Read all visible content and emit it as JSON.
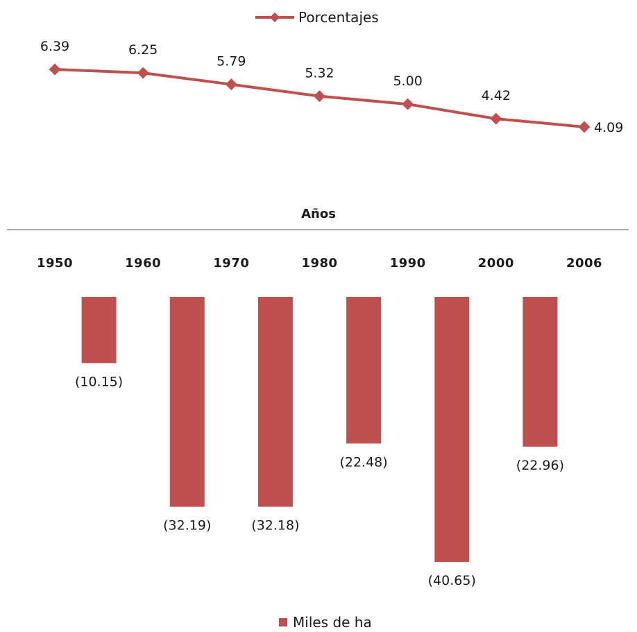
{
  "chart_data": [
    {
      "type": "line",
      "legend": "Porcentajes",
      "legend_position": "top",
      "color": "#c0504d",
      "x": [
        "1950",
        "1960",
        "1970",
        "1980",
        "1990",
        "2000",
        "2006"
      ],
      "values": [
        6.39,
        6.25,
        5.79,
        5.32,
        5.0,
        4.42,
        4.09
      ],
      "labels": [
        "6.39",
        "6.25",
        "5.79",
        "5.32",
        "5.00",
        "4.42",
        "4.09"
      ],
      "ylim": [
        3.9,
        6.5
      ],
      "grid": false
    },
    {
      "type": "bar",
      "legend": "Miles de ha",
      "legend_position": "bottom",
      "color": "#c0504d",
      "xlabel": "Años",
      "categories": [
        "1950",
        "1960",
        "1970",
        "1980",
        "1990",
        "2000",
        "2006"
      ],
      "values": [
        -10.15,
        -32.19,
        -32.18,
        -22.48,
        -40.65,
        -22.96
      ],
      "labels": [
        "(10.15)",
        "(32.19)",
        "(32.18)",
        "(22.48)",
        "(40.65)",
        "(22.96)"
      ],
      "ylim": [
        -41,
        0
      ],
      "grid": false
    }
  ]
}
